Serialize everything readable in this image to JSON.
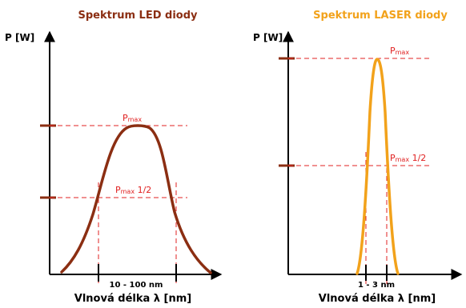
{
  "colors": {
    "led_curve": "#8b2e12",
    "laser_curve": "#f2a21b",
    "led_title": "#8b2e12",
    "laser_title": "#f2a21b",
    "guide_line": "#e02020",
    "axis": "#000000"
  },
  "led": {
    "title": "Spektrum LED diody",
    "y_axis_label": "P [W]",
    "x_axis_label": "Vlnová délka λ [nm]",
    "width_label": "10 - 100 nm",
    "pmax_main": "P",
    "pmax_sub": "max",
    "half_main": "P",
    "half_sub": "max",
    "half_suffix": " 1/2"
  },
  "laser": {
    "title": "Spektrum LASER diody",
    "y_axis_label": "P [W]",
    "x_axis_label": "Vlnová délka λ [nm]",
    "width_label": "1 - 3 nm",
    "pmax_main": "P",
    "pmax_sub": "max",
    "half_main": "P",
    "half_sub": "max",
    "half_suffix": " 1/2"
  }
}
